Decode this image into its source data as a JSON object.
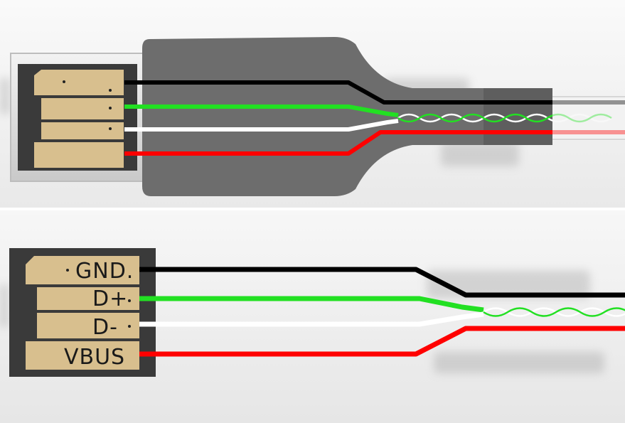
{
  "top_diagram": {
    "wire_colors": [
      "#000000",
      "#22e022",
      "#ffffff",
      "#ff0000"
    ],
    "plug_color": "#6b6b6b",
    "contact_color": "#d8bf8e",
    "pcb_color": "#3c3c3c"
  },
  "bottom_diagram": {
    "pins": [
      {
        "label": "GND.",
        "wire_color": "#000000"
      },
      {
        "label": "D+",
        "wire_color": "#22e022"
      },
      {
        "label": "D-",
        "wire_color": "#ffffff"
      },
      {
        "label": "VBUS",
        "wire_color": "#ff0000"
      }
    ]
  }
}
